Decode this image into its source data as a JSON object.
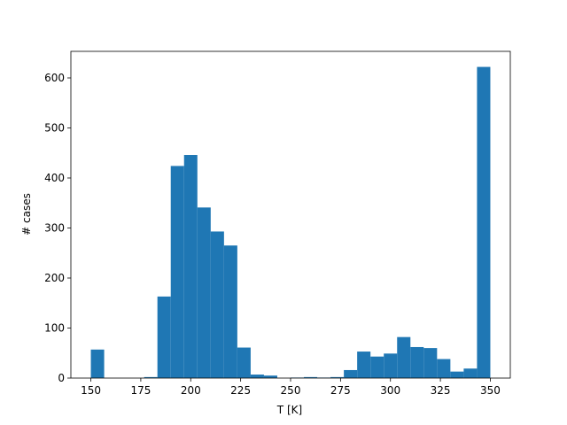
{
  "chart_data": {
    "type": "histogram",
    "xlabel": "T [K]",
    "ylabel": "# cases",
    "color": "#1f77b4",
    "bins": [
      150,
      156.67,
      163.33,
      170,
      176.67,
      183.33,
      190,
      196.67,
      203.33,
      210,
      216.67,
      223.33,
      230,
      236.67,
      243.33,
      250,
      256.67,
      263.33,
      270,
      276.67,
      283.33,
      290,
      296.67,
      303.33,
      310,
      316.67,
      323.33,
      330,
      336.67,
      343.33,
      350
    ],
    "values": [
      57,
      0,
      0,
      0,
      2,
      163,
      424,
      446,
      341,
      293,
      265,
      61,
      7,
      5,
      0,
      1,
      2,
      1,
      2,
      16,
      53,
      43,
      49,
      82,
      62,
      60,
      38,
      13,
      19,
      622
    ],
    "xlim": [
      140,
      360
    ],
    "ylim": [
      0,
      653.1
    ],
    "xticks": [
      150,
      175,
      200,
      225,
      250,
      275,
      300,
      325,
      350
    ],
    "yticks": [
      0,
      100,
      200,
      300,
      400,
      500,
      600
    ]
  }
}
